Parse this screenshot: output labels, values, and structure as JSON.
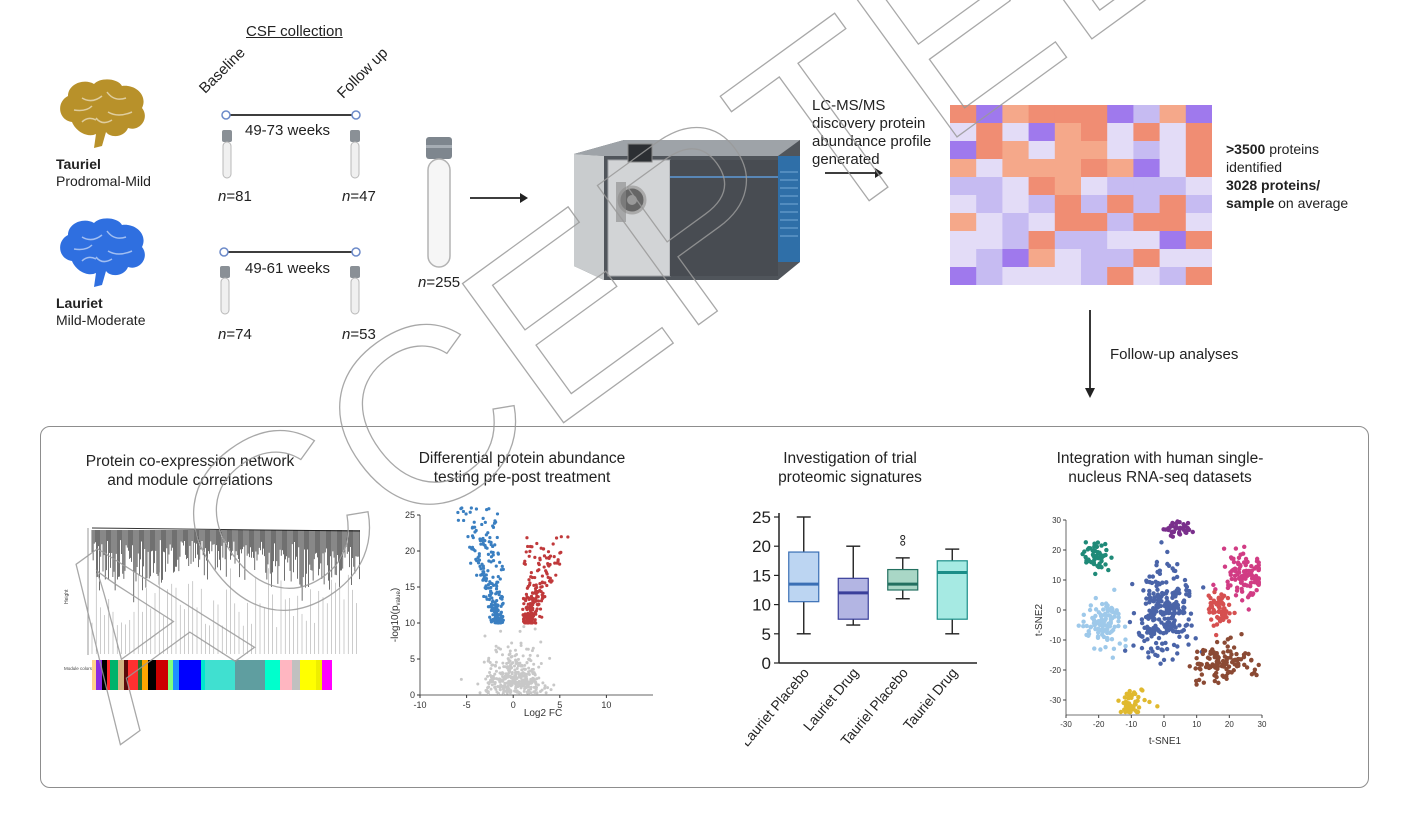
{
  "collection": {
    "title": "CSF collection",
    "baseline_label": "Baseline",
    "followup_label": "Follow up"
  },
  "tauriel": {
    "name": "Tauriel",
    "stage": "Prodromal-Mild",
    "interval": "49-73 weeks",
    "n_baseline": "=81",
    "n_followup": "=47",
    "brain_color": "#b8912a"
  },
  "lauriet": {
    "name": "Lauriet",
    "stage": "Mild-Moderate",
    "interval": "49-61 weeks",
    "n_baseline": "=74",
    "n_followup": "=53",
    "brain_color": "#2f6fe0"
  },
  "pooled": {
    "n": "=255",
    "n_letter": "n"
  },
  "lcms": {
    "line1": "LC-MS/MS",
    "line2": "discovery protein",
    "line3": "abundance profile",
    "line4": "generated"
  },
  "proteins": {
    "count_bold": ">3500",
    "count_rest": " proteins",
    "line2": "identified",
    "avg_bold_1": "3028 proteins/",
    "avg_bold_2": "sample",
    "avg_rest": " on average"
  },
  "followup": "Follow-up analyses",
  "panels": {
    "network": {
      "title_1": "Protein co-expression network",
      "title_2": "and module correlations",
      "height_label": "Height",
      "module_label": "Module colors"
    },
    "volcano": {
      "title_1": "Differential protein abundance",
      "title_2": "testing pre-post treatment",
      "xlabel": "Log2 FC",
      "ylabel": "-log10(p",
      "ylabel_sub": "value",
      "ylabel_end": ")"
    },
    "box": {
      "title_1": "Investigation of trial",
      "title_2": "proteomic signatures"
    },
    "tsne": {
      "title_1": "Integration with human single-",
      "title_2": "nucleus RNA-seq datasets",
      "xlabel": "t-SNE1",
      "ylabel": "t-SNE2"
    }
  },
  "watermark": "ACCEPTED MANUSCRIPT",
  "chart_data": [
    {
      "type": "scatter",
      "name": "volcano",
      "xlabel": "Log2 FC",
      "ylabel": "-log10(pvalue)",
      "xlim": [
        -10,
        15
      ],
      "ylim": [
        0,
        25
      ],
      "xticks": [
        -10,
        -5,
        0,
        5,
        10
      ],
      "yticks": [
        0,
        5,
        10,
        15,
        20,
        25
      ],
      "colors": {
        "down": "#3a7fc1",
        "up": "#c0393b",
        "ns": "#c8c8c8"
      }
    },
    {
      "type": "box",
      "name": "trial-signatures",
      "categories": [
        "Lauriet Placebo",
        "Lauriet Drug",
        "Tauriel Placebo",
        "Tauriel Drug"
      ],
      "ylim": [
        0,
        25
      ],
      "yticks": [
        0,
        5,
        10,
        15,
        20,
        25
      ],
      "boxes": [
        {
          "min": 5,
          "q1": 10.5,
          "median": 13.5,
          "q3": 19,
          "max": 25,
          "fill": "#bcd5f2",
          "stroke": "#3a6fb5"
        },
        {
          "min": 6.5,
          "q1": 7.5,
          "median": 12,
          "q3": 14.5,
          "max": 20,
          "fill": "#b3b5e3",
          "stroke": "#3a3f9a"
        },
        {
          "min": 11,
          "q1": 12.5,
          "median": 13.5,
          "q3": 16,
          "max": 18,
          "outliers": [
            20.5,
            21.5
          ],
          "fill": "#a9d7c6",
          "stroke": "#237060"
        },
        {
          "min": 5,
          "q1": 7.5,
          "median": 15.5,
          "q3": 17.5,
          "max": 19.5,
          "fill": "#a6eae3",
          "stroke": "#1a8e88"
        }
      ]
    },
    {
      "type": "scatter",
      "name": "tsne",
      "xlabel": "t-SNE1",
      "ylabel": "t-SNE2",
      "xlim": [
        -30,
        30
      ],
      "ylim": [
        -35,
        30
      ],
      "xticks": [
        -30,
        -20,
        -10,
        0,
        10,
        20,
        30
      ],
      "yticks": [
        -30,
        -20,
        -10,
        0,
        10,
        20,
        30
      ],
      "clusters": [
        {
          "color": "#1f8a78",
          "cx": -20,
          "cy": 18,
          "sx": 3,
          "sy": 3,
          "n": 55
        },
        {
          "color": "#9ec9ea",
          "cx": -18,
          "cy": -5,
          "sx": 4,
          "sy": 5,
          "n": 110
        },
        {
          "color": "#4a64a8",
          "cx": 0,
          "cy": 0,
          "sx": 6,
          "sy": 9,
          "n": 260
        },
        {
          "color": "#7a2f8c",
          "cx": 4,
          "cy": 27,
          "sx": 3,
          "sy": 1.5,
          "n": 35
        },
        {
          "color": "#d13c84",
          "cx": 24,
          "cy": 12,
          "sx": 4,
          "sy": 5,
          "n": 110
        },
        {
          "color": "#d65050",
          "cx": 17,
          "cy": 0,
          "sx": 2.5,
          "sy": 4,
          "n": 60
        },
        {
          "color": "#8b4a34",
          "cx": 18,
          "cy": -18,
          "sx": 6,
          "sy": 4,
          "n": 110
        },
        {
          "color": "#e0b92e",
          "cx": -10,
          "cy": -31,
          "sx": 3,
          "sy": 2.5,
          "n": 50
        }
      ]
    },
    {
      "type": "heatmap",
      "name": "abundance-profile",
      "rows": 10,
      "cols": 10,
      "palette": [
        "#f08d73",
        "#e3dcf7",
        "#c6bbf2",
        "#9f79ed",
        "#f5a88a"
      ]
    }
  ]
}
